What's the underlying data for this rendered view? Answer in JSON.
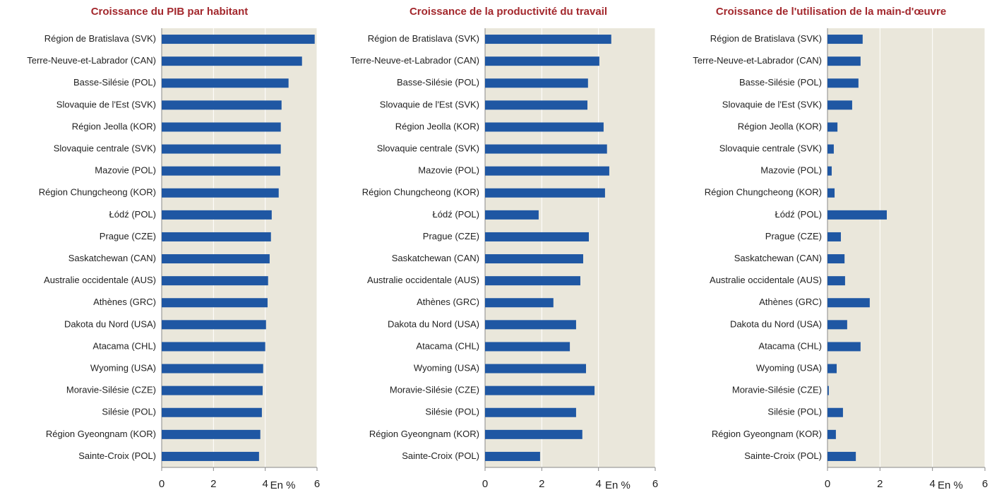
{
  "chart_data": [
    {
      "type": "barh",
      "title": "Croissance du PIB par habitant",
      "xlabel": "En %",
      "categories": [
        "Région de Bratislava (SVK)",
        "Terre-Neuve-et-Labrador (CAN)",
        "Basse-Silésie (POL)",
        "Slovaquie de l'Est (SVK)",
        "Région Jeolla (KOR)",
        "Slovaquie centrale (SVK)",
        "Mazovie (POL)",
        "Région Chungcheong (KOR)",
        "Łódź (POL)",
        "Prague (CZE)",
        "Saskatchewan (CAN)",
        "Australie occidentale (AUS)",
        "Athènes (GRC)",
        "Dakota du Nord (USA)",
        "Atacama (CHL)",
        "Wyoming (USA)",
        "Moravie-Silésie (CZE)",
        "Silésie (POL)",
        "Région Gyeongnam (KOR)",
        "Sainte-Croix (POL)"
      ],
      "values": [
        5.91,
        5.42,
        4.9,
        4.63,
        4.6,
        4.6,
        4.58,
        4.52,
        4.25,
        4.22,
        4.17,
        4.11,
        4.09,
        4.03,
        4.0,
        3.92,
        3.9,
        3.87,
        3.81,
        3.76
      ],
      "color": "#1f57a3",
      "xlim": [
        0,
        6
      ],
      "xticks": [
        0,
        2,
        4,
        6
      ],
      "grid": true
    },
    {
      "type": "barh",
      "title": "Croissance de la productivité du travail",
      "xlabel": "En %",
      "categories": [
        "Région de Bratislava (SVK)",
        "Terre-Neuve-et-Labrador (CAN)",
        "Basse-Silésie (POL)",
        "Slovaquie de l'Est (SVK)",
        "Région Jeolla (KOR)",
        "Slovaquie centrale (SVK)",
        "Mazovie (POL)",
        "Région Chungcheong (KOR)",
        "Łódź (POL)",
        "Prague (CZE)",
        "Saskatchewan (CAN)",
        "Australie occidentale (AUS)",
        "Athènes (GRC)",
        "Dakota du Nord (USA)",
        "Atacama (CHL)",
        "Wyoming (USA)",
        "Moravie-Silésie (CZE)",
        "Silésie (POL)",
        "Région Gyeongnam (KOR)",
        "Sainte-Croix (POL)"
      ],
      "values": [
        4.45,
        4.03,
        3.63,
        3.61,
        4.18,
        4.3,
        4.38,
        4.23,
        1.89,
        3.66,
        3.46,
        3.36,
        2.41,
        3.21,
        2.99,
        3.56,
        3.86,
        3.21,
        3.43,
        1.94
      ],
      "color": "#1f57a3",
      "xlim": [
        0,
        6
      ],
      "xticks": [
        0,
        2,
        4,
        6
      ],
      "grid": true
    },
    {
      "type": "barh",
      "title": "Croissance de l'utilisation de la main-d'œuvre",
      "xlabel": "En %",
      "categories": [
        "Région de Bratislava (SVK)",
        "Terre-Neuve-et-Labrador (CAN)",
        "Basse-Silésie (POL)",
        "Slovaquie de l'Est (SVK)",
        "Région Jeolla (KOR)",
        "Slovaquie centrale (SVK)",
        "Mazovie (POL)",
        "Région Chungcheong (KOR)",
        "Łódź (POL)",
        "Prague (CZE)",
        "Saskatchewan (CAN)",
        "Australie occidentale (AUS)",
        "Athènes (GRC)",
        "Dakota du Nord (USA)",
        "Atacama (CHL)",
        "Wyoming (USA)",
        "Moravie-Silésie (CZE)",
        "Silésie (POL)",
        "Région Gyeongnam (KOR)",
        "Sainte-Croix (POL)"
      ],
      "values": [
        1.34,
        1.26,
        1.18,
        0.94,
        0.38,
        0.24,
        0.16,
        0.27,
        2.26,
        0.51,
        0.65,
        0.67,
        1.61,
        0.75,
        1.26,
        0.35,
        0.05,
        0.59,
        0.32,
        1.08
      ],
      "color": "#1f57a3",
      "xlim": [
        0,
        6
      ],
      "xticks": [
        0,
        2,
        4,
        6
      ],
      "grid": true
    }
  ]
}
